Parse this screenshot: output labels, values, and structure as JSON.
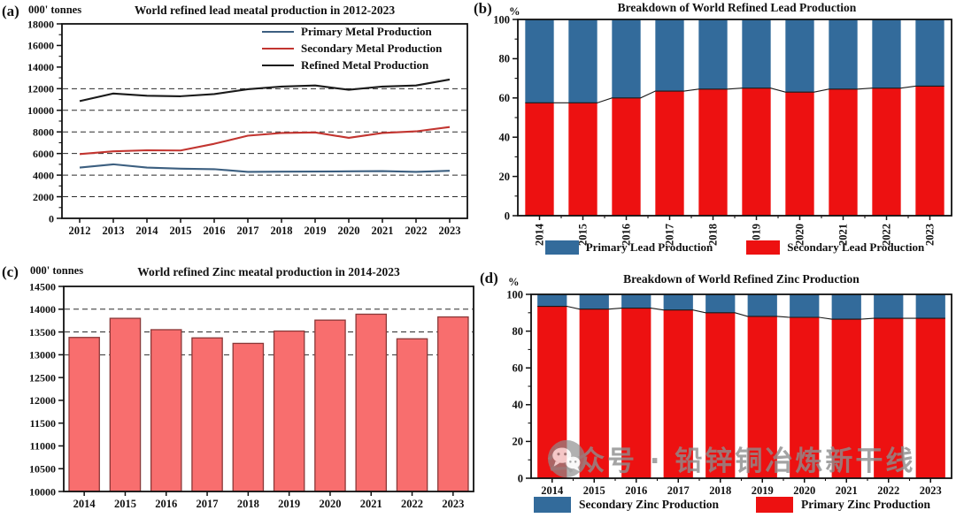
{
  "watermark": {
    "text": "公众号 · 铅锌铜冶炼新干线",
    "icon": "wechat-icon",
    "color": "#8d8d8d"
  },
  "colors": {
    "stacked_blue": "#336b9b",
    "stacked_red": "#ed1111",
    "line_blue": "#3c5f80",
    "line_red": "#c23530",
    "line_black": "#1a1a1a",
    "bar_fill": "#f86e6e",
    "bar_border": "#8a3838"
  },
  "chart_data": [
    {
      "id": "a",
      "tag": "(a)",
      "type": "line",
      "unit": "000' tonnes",
      "title": "World refined lead meatal production in 2012-2023",
      "x": [
        2012,
        2013,
        2014,
        2015,
        2016,
        2017,
        2018,
        2019,
        2020,
        2021,
        2022,
        2023
      ],
      "series": [
        {
          "name": "Primary Metal Production",
          "color": "#3c5f80",
          "values": [
            4700,
            5000,
            4700,
            4600,
            4550,
            4300,
            4320,
            4330,
            4350,
            4370,
            4300,
            4400
          ]
        },
        {
          "name": "Secondary Metal Production",
          "color": "#c23530",
          "values": [
            5950,
            6200,
            6300,
            6280,
            6900,
            7650,
            7900,
            7950,
            7450,
            7900,
            8050,
            8450
          ]
        },
        {
          "name": "Refined Metal Production",
          "color": "#1a1a1a",
          "values": [
            10850,
            11550,
            11350,
            11300,
            11500,
            11950,
            12200,
            12300,
            11900,
            12200,
            12300,
            12850
          ]
        }
      ],
      "ylim": [
        0,
        18000
      ],
      "ytick_step": 2000,
      "grid_values": [
        2000,
        4000,
        6000,
        8000,
        10000,
        12000
      ],
      "grid": "dashed-horizontal",
      "legend_position": "top-right-inside"
    },
    {
      "id": "b",
      "tag": "(b)",
      "type": "stacked_bar_100",
      "unit": "%",
      "title": "Breakdown of World Refined Lead Production",
      "x": [
        2014,
        2015,
        2016,
        2017,
        2018,
        2019,
        2020,
        2021,
        2022,
        2023
      ],
      "series": [
        {
          "name": "Secondary Lead Production",
          "color": "#ed1111",
          "values": [
            57.5,
            57.5,
            60,
            63.5,
            64.5,
            65,
            63,
            64.5,
            65,
            66
          ]
        },
        {
          "name": "Primary Lead Production",
          "color": "#336b9b",
          "values": [
            42.5,
            42.5,
            40,
            36.5,
            35.5,
            35,
            37,
            35.5,
            35,
            34
          ]
        }
      ],
      "ylim": [
        0,
        100
      ],
      "ytick_step": 20,
      "grid": "none",
      "xlabel_rotation": -90,
      "legend_position": "bottom",
      "legend": [
        {
          "label": "Primary Lead Production",
          "color": "#336b9b"
        },
        {
          "label": "Secondary Lead Production",
          "color": "#ed1111"
        }
      ]
    },
    {
      "id": "c",
      "tag": "(c)",
      "type": "bar",
      "unit": "000' tonnes",
      "title": "World refined Zinc meatal production in 2014-2023",
      "x": [
        2014,
        2015,
        2016,
        2017,
        2018,
        2019,
        2020,
        2021,
        2022,
        2023
      ],
      "values": [
        13380,
        13800,
        13550,
        13370,
        13250,
        13520,
        13760,
        13890,
        13350,
        13830
      ],
      "bar_color": "#f86e6e",
      "bar_border": "#8a3838",
      "ylim": [
        10000,
        14500
      ],
      "ytick_step": 500,
      "grid_values": [
        13000,
        13500,
        14000
      ],
      "grid": "dashed-horizontal"
    },
    {
      "id": "d",
      "tag": "(d)",
      "type": "stacked_bar_100",
      "unit": "%",
      "title": "Breakdown of World Refined Zinc Production",
      "x": [
        2014,
        2015,
        2016,
        2017,
        2018,
        2019,
        2020,
        2021,
        2022,
        2023
      ],
      "series": [
        {
          "name": "Primary Zinc Production",
          "color": "#ed1111",
          "values": [
            93.5,
            92,
            92.5,
            91.5,
            90,
            88,
            87.5,
            86.5,
            87,
            87
          ]
        },
        {
          "name": "Secondary Zinc Production",
          "color": "#336b9b",
          "values": [
            6.5,
            8,
            7.5,
            8.5,
            10,
            12,
            12.5,
            13.5,
            13,
            13
          ]
        }
      ],
      "ylim": [
        0,
        100
      ],
      "ytick_step": 20,
      "grid": "none",
      "legend_position": "bottom",
      "legend": [
        {
          "label": "Secondary Zinc Production",
          "color": "#336b9b"
        },
        {
          "label": "Primary Zinc Production",
          "color": "#ed1111"
        }
      ]
    }
  ]
}
